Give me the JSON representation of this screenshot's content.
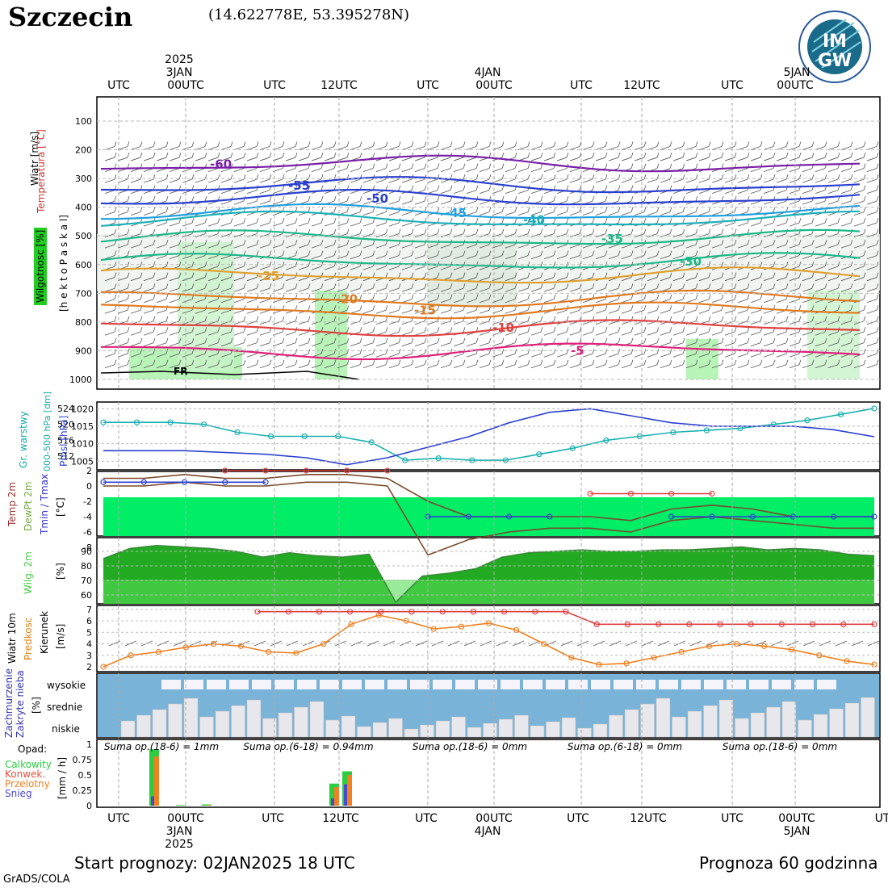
{
  "header": {
    "city": "Szczecin",
    "coords": "(14.622778E, 53.395278N)",
    "logo_text_top": "IM",
    "logo_text_bottom": "GW"
  },
  "top_axis": {
    "utc_labels": [
      "UTC",
      "00UTC",
      "UTC",
      "12UTC",
      "UTC",
      "00UTC",
      "UTC",
      "12UTC",
      "UTC",
      "00UTC"
    ],
    "date_labels": [
      {
        "year": "2025",
        "day": "3JAN"
      },
      {
        "year": "",
        "day": "4JAN"
      },
      {
        "year": "",
        "day": "5JAN"
      }
    ]
  },
  "bottom_axis": {
    "utc_labels": [
      "UTC",
      "00UTC",
      "UTC",
      "12UTC",
      "UTC",
      "00UTC",
      "UTC",
      "12UTC",
      "UTC",
      "00UTC",
      "UT"
    ],
    "date_labels": [
      {
        "day": "3JAN",
        "year": "2025"
      },
      {
        "day": "4JAN",
        "year": ""
      },
      {
        "day": "5JAN",
        "year": ""
      }
    ]
  },
  "side_labels": {
    "wind": "Wiatr [m/s]",
    "temperature": "Temperatura [°C]",
    "humidity": "Wilgotnosc [%]",
    "pressure_axis": "[h e k t o P a s k a l]",
    "gr_warstwy": "Gr. warstwy",
    "gr_range": "000-500 hPa [dm]",
    "pmsl": "Pmsl [hPa]",
    "temp2m": "Temp 2m",
    "dewpt": "DewPt 2m",
    "tminmax": "Tmin / Tmax",
    "degc": "[°C]",
    "wilg2m": "Wilg. 2m",
    "pct": "[%]",
    "wiatr10m": "Wiatr 10m",
    "predkosc": "Predkosc",
    "kierunek": "Kierunek",
    "ms": "[m/s]",
    "zachm": "Zachmurzenie",
    "zakr": "Zakryte nieba",
    "cloud_pct": "[%]",
    "wysokie": "wysokie",
    "srednie": "srednie",
    "niskie": "niskie",
    "opad": "Opad:",
    "calkowity": "Calkowity",
    "konwek": "Konwek.",
    "przelotny": "Przelotny",
    "snieg": "Snieg",
    "mmh": "[mm / h]"
  },
  "colors": {
    "calkowity": "#2ecc40",
    "konwek": "#e8503a",
    "przelotny": "#f08020",
    "snieg": "#4a4acc",
    "cloud_bg": "#7ab3d8",
    "wilg_green": "#22aa22"
  },
  "chart_data": [
    {
      "type": "line",
      "panel": "upper-air cross-section",
      "yticks": [
        100,
        200,
        300,
        400,
        500,
        600,
        700,
        800,
        900,
        1000
      ],
      "isotherms": [
        {
          "label": "-60",
          "color": "#7a1fa8",
          "level": 250
        },
        {
          "label": "-55",
          "color": "#2a3fd0",
          "level": 325
        },
        {
          "label": "-50",
          "color": "#2a3fd0",
          "level": 370
        },
        {
          "label": "-45",
          "color": "#1ea0e0",
          "level": 420
        },
        {
          "label": "-40",
          "color": "#1ab0b8",
          "level": 445
        },
        {
          "label": "-35",
          "color": "#1ab88a",
          "level": 510
        },
        {
          "label": "-30",
          "color": "#1ab88a",
          "level": 590
        },
        {
          "label": "-25",
          "color": "#e0a030",
          "level": 640
        },
        {
          "label": "-20",
          "color": "#e07a20",
          "level": 720
        },
        {
          "label": "-15",
          "color": "#e07a20",
          "level": 760
        },
        {
          "label": "-10",
          "color": "#e04040",
          "level": 820
        },
        {
          "label": "-5",
          "color": "#e0207a",
          "level": 900
        }
      ],
      "annotation": "FR"
    },
    {
      "type": "line",
      "panel": "thickness and pmsl",
      "yticks_left": [
        512,
        516,
        520,
        524
      ],
      "yticks_right": [
        1005,
        1010,
        1015,
        1020
      ],
      "series": [
        {
          "name": "Gr. warstwy",
          "values": [
            520.5,
            520.5,
            520.5,
            520,
            518,
            517,
            517,
            517,
            515.5,
            511,
            511.5,
            511,
            511,
            512.5,
            514,
            516,
            517,
            518,
            518.5,
            519,
            520,
            521,
            522.5,
            524
          ]
        },
        {
          "name": "Pmsl",
          "values": [
            1008,
            1008,
            1008,
            1007.5,
            1007,
            1006,
            1004,
            1006,
            1009,
            1012,
            1016,
            1019,
            1020,
            1018,
            1016,
            1015,
            1015,
            1015,
            1014,
            1012
          ]
        }
      ]
    },
    {
      "type": "line",
      "panel": "temperature 2m",
      "yticks": [
        2,
        0,
        -2,
        -4,
        -6,
        -8
      ],
      "series": [
        {
          "name": "Temp 2m",
          "values": [
            1,
            1,
            1.5,
            1,
            1,
            1.5,
            1.5,
            1,
            -2,
            -4,
            -4,
            -4,
            -4,
            -4.5,
            -3,
            -2.5,
            -3,
            -4,
            -4,
            -4
          ]
        },
        {
          "name": "DewPt 2m",
          "values": [
            0,
            0,
            0.5,
            0,
            0,
            0.5,
            0.5,
            0,
            -9,
            -7,
            -6,
            -5.5,
            -5.5,
            -6,
            -4.5,
            -4,
            -4.5,
            -5,
            -5.5,
            -5.5
          ]
        },
        {
          "name": "Tmin",
          "values": [
            0.5,
            0.5,
            0.5,
            0.5,
            0.5,
            null,
            null,
            null,
            -4,
            -4,
            -4,
            -4,
            null,
            null,
            -4,
            -4,
            -4,
            -4,
            -4,
            -4
          ]
        },
        {
          "name": "Tmax",
          "values": [
            null,
            null,
            null,
            2,
            2,
            2,
            2,
            2,
            null,
            null,
            null,
            null,
            -1,
            -1,
            -1,
            -1,
            null,
            null,
            null,
            null
          ]
        }
      ]
    },
    {
      "type": "area",
      "panel": "humidity 2m",
      "yticks": [
        60,
        70,
        80,
        90
      ],
      "values": [
        85,
        92,
        94,
        93,
        92,
        90,
        86,
        89,
        87,
        86,
        88,
        55,
        73,
        75,
        78,
        86,
        89,
        90,
        91,
        90,
        90,
        91,
        91,
        92,
        93,
        91,
        92,
        91,
        88,
        87
      ]
    },
    {
      "type": "line",
      "panel": "wind 10m",
      "yticks": [
        2,
        3,
        4,
        5,
        6,
        7
      ],
      "series": [
        {
          "name": "Predkosc",
          "values": [
            2,
            3,
            3.3,
            3.7,
            4,
            3.8,
            3.3,
            3.2,
            4,
            5.7,
            6.5,
            6,
            5.3,
            5.5,
            5.8,
            5.2,
            4,
            2.8,
            2.2,
            2.3,
            2.8,
            3.3,
            3.8,
            4,
            3.8,
            3.5,
            3,
            2.5,
            2.2
          ]
        },
        {
          "name": "Gust",
          "values": [
            null,
            null,
            null,
            null,
            null,
            6.8,
            6.8,
            6.8,
            6.8,
            6.8,
            6.8,
            6.8,
            6.8,
            6.8,
            6.8,
            6.8,
            5.7,
            5.7,
            5.7,
            5.7,
            5.7,
            5.7,
            5.7,
            5.7,
            5.7,
            5.7
          ]
        }
      ]
    },
    {
      "type": "bar",
      "panel": "precipitation",
      "yticks": [
        0,
        0.25,
        0.5,
        0.75,
        1
      ],
      "sums": [
        "Suma op.(18-6) = 1mm",
        "Suma op.(6-18) = 0.94mm",
        "Suma op.(18-6) = 0mm",
        "Suma op.(6-18) = 0mm",
        "Suma op.(18-6) = 0mm"
      ],
      "bars": [
        {
          "x": "03JAN 00UTC-3h",
          "total": 0.92,
          "conv": 0.8,
          "snow": 0.15
        },
        {
          "x": "03JAN 00UTC",
          "total": 0.01,
          "conv": 0.0,
          "snow": 0.0
        },
        {
          "x": "03JAN 03UTC",
          "total": 0.02,
          "conv": 0.01,
          "snow": 0.0
        },
        {
          "x": "03JAN 12UTC",
          "total": 0.36,
          "conv": 0.3,
          "snow": 0.12
        },
        {
          "x": "03JAN 15UTC",
          "total": 0.56,
          "conv": 0.5,
          "snow": 0.35
        }
      ]
    }
  ],
  "footer": {
    "start": "Start prognozy: 02JAN2025 18 UTC",
    "prognoza": "Prognoza 60 godzinna",
    "grads": "GrADS/COLA"
  }
}
